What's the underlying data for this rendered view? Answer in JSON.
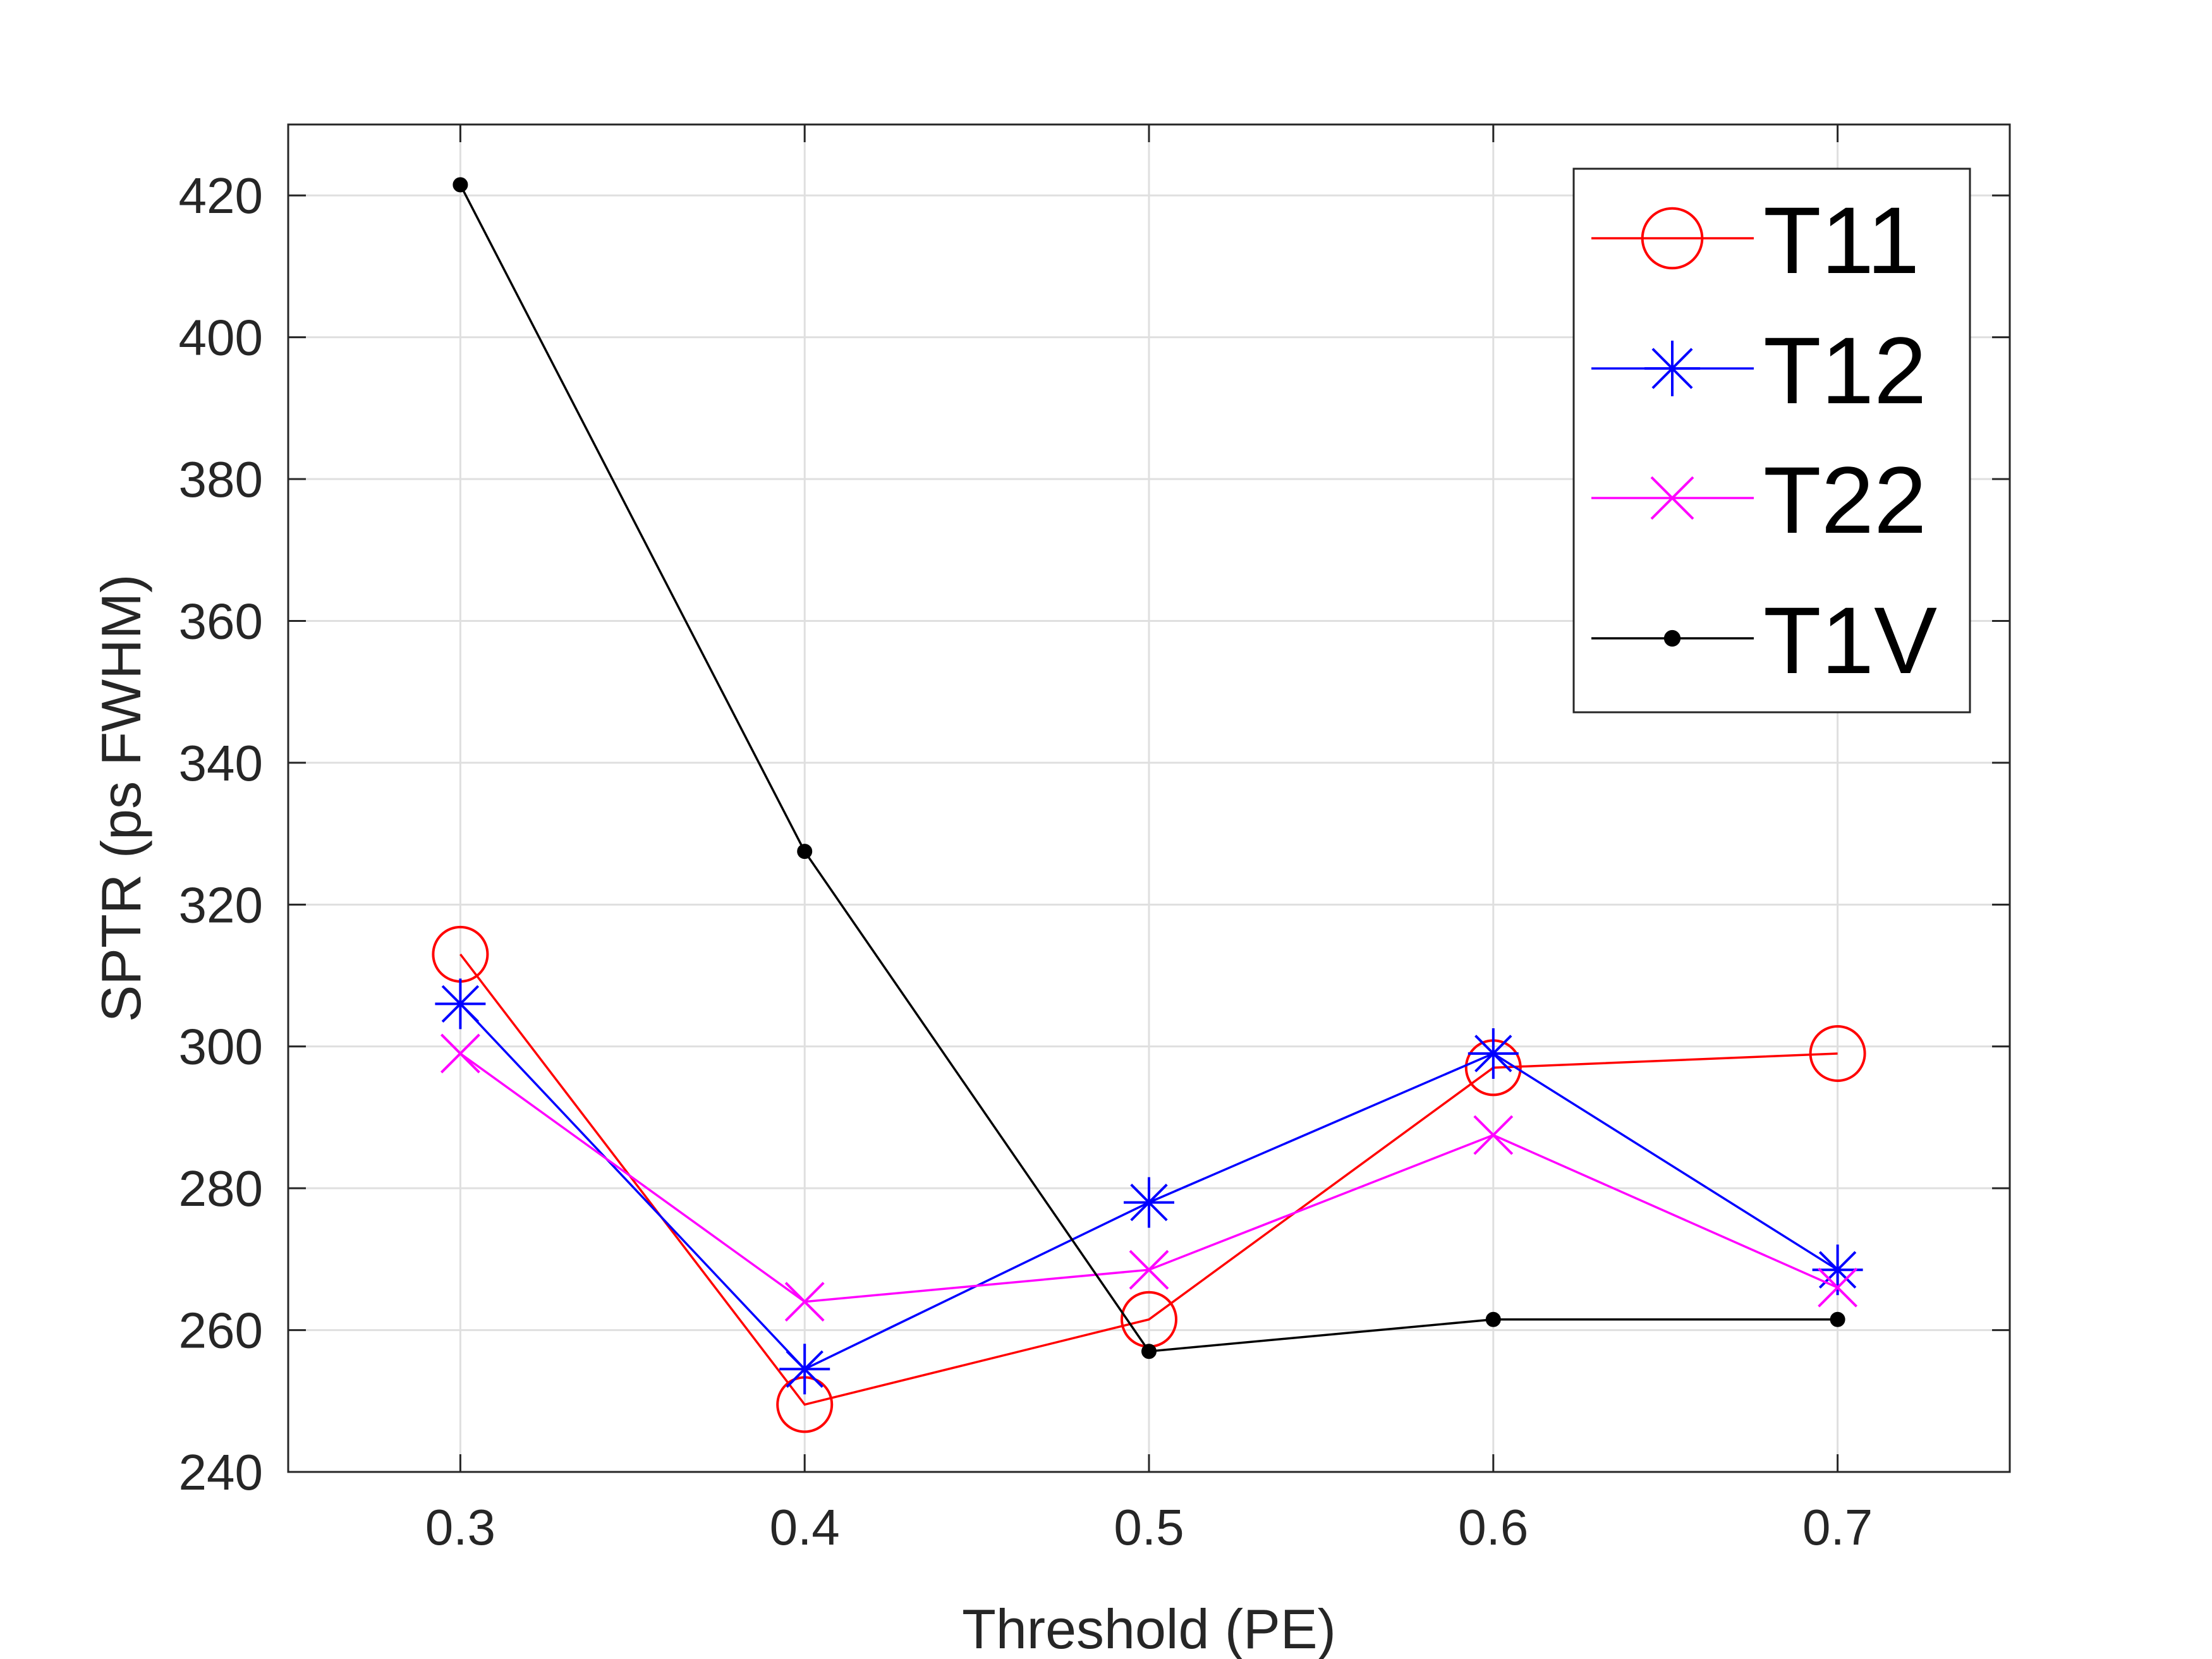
{
  "chart_data": {
    "type": "line",
    "title": "",
    "xlabel": "Threshold (PE)",
    "ylabel": "SPTR (ps FWHM)",
    "xlim": [
      0.25,
      0.75
    ],
    "ylim": [
      240,
      430
    ],
    "xticks": [
      0.3,
      0.4,
      0.5,
      0.6,
      0.7
    ],
    "xtick_labels": [
      "0.3",
      "0.4",
      "0.5",
      "0.6",
      "0.7"
    ],
    "yticks": [
      240,
      260,
      280,
      300,
      320,
      340,
      360,
      380,
      400,
      420
    ],
    "ytick_labels": [
      "240",
      "260",
      "280",
      "300",
      "320",
      "340",
      "360",
      "380",
      "400",
      "420"
    ],
    "grid": true,
    "legend_position": "top-right",
    "series": [
      {
        "name": "T11",
        "color": "#ff0000",
        "marker": "circle",
        "x": [
          0.3,
          0.4,
          0.5,
          0.6,
          0.7
        ],
        "y": [
          313,
          249.5,
          261.5,
          297,
          299
        ]
      },
      {
        "name": "T12",
        "color": "#0000ff",
        "marker": "asterisk",
        "x": [
          0.3,
          0.4,
          0.5,
          0.6,
          0.7
        ],
        "y": [
          306,
          254.5,
          278,
          299,
          268.5
        ]
      },
      {
        "name": "T22",
        "color": "#ff00ff",
        "marker": "cross",
        "x": [
          0.3,
          0.4,
          0.5,
          0.6,
          0.7
        ],
        "y": [
          299,
          264,
          268.5,
          287.5,
          266
        ]
      },
      {
        "name": "T1V",
        "color": "#000000",
        "marker": "dot",
        "x": [
          0.3,
          0.4,
          0.5,
          0.6,
          0.7
        ],
        "y": [
          421.5,
          327.5,
          257,
          261.5,
          261.5
        ]
      }
    ]
  }
}
